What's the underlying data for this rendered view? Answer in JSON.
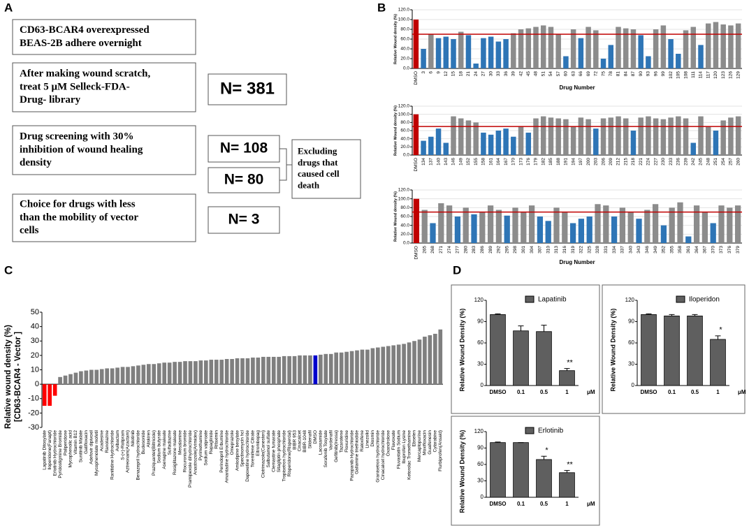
{
  "panel_labels": [
    "A",
    "B",
    "C",
    "D"
  ],
  "flowchart": {
    "steps": [
      {
        "lines": [
          "CD63-BCAR4  overexpressed",
          "BEAS-2B adhere overnight"
        ]
      },
      {
        "lines": [
          "After making wound scratch,",
          "treat  5  μM  Selleck-FDA-",
          "Drug- library"
        ]
      },
      {
        "lines": [
          "Drug screening with  30%",
          "inhibition of wound healing",
          "density"
        ]
      },
      {
        "lines": [
          "Choice for drugs with less",
          "than the mobility of vector",
          "cells"
        ]
      }
    ],
    "counts": [
      {
        "text": "N= 381",
        "color": "#000000"
      },
      {
        "text": "N= 108",
        "color": "#2e75b6"
      },
      {
        "text": "N= 80",
        "color": "#595959"
      },
      {
        "text": "N= 3",
        "color": "#ff0000"
      }
    ],
    "exclusion": {
      "lines": [
        "Excluding",
        "drugs that",
        "caused cell",
        "death"
      ]
    }
  },
  "chart_data": [
    {
      "type": "bar",
      "y_label": "Relative Wound density (%)",
      "x_label": "Drug Number",
      "categories": [
        "DMSO",
        "3",
        "6",
        "9",
        "12",
        "15",
        "18",
        "21",
        "24",
        "27",
        "30",
        "33",
        "36",
        "39",
        "42",
        "45",
        "48",
        "51",
        "54",
        "57",
        "60",
        "63",
        "66",
        "69",
        "72",
        "75",
        "78",
        "81",
        "84",
        "87",
        "90",
        "93",
        "96",
        "99",
        "102",
        "105",
        "108",
        "111",
        "114",
        "117",
        "120",
        "123",
        "126",
        "129"
      ],
      "values": [
        100,
        40,
        70,
        62,
        65,
        60,
        75,
        68,
        10,
        62,
        65,
        55,
        60,
        72,
        80,
        82,
        85,
        88,
        85,
        70,
        25,
        80,
        62,
        85,
        78,
        20,
        48,
        85,
        82,
        80,
        68,
        25,
        80,
        88,
        60,
        30,
        78,
        85,
        48,
        92,
        95,
        90,
        88,
        92
      ],
      "color": "#8c8c8c",
      "highlight_color": "#2e75b6",
      "control_color": "#c00000",
      "threshold": 70,
      "threshold_color": "#c00000",
      "ylim": [
        0,
        120
      ],
      "yticks": [
        {
          "value": 0,
          "label": "0.0"
        },
        {
          "value": 20,
          "label": "20.0"
        },
        {
          "value": 40,
          "label": "40.0"
        },
        {
          "value": 60,
          "label": "60.0"
        },
        {
          "value": 80,
          "label": "80.0"
        },
        {
          "value": 100,
          "label": "100.0"
        },
        {
          "value": 120,
          "label": "120.0"
        }
      ],
      "grid": true
    },
    {
      "type": "bar",
      "y_label": "Relative Wound density (%)",
      "categories": [
        "DMSO",
        "134",
        "137",
        "140",
        "143",
        "146",
        "149",
        "152",
        "155",
        "158",
        "161",
        "164",
        "167",
        "170",
        "173",
        "176",
        "179",
        "182",
        "185",
        "188",
        "191",
        "194",
        "197",
        "200",
        "203",
        "206",
        "209",
        "212",
        "215",
        "218",
        "221",
        "224",
        "227",
        "230",
        "233",
        "236",
        "239",
        "242",
        "245",
        "248",
        "251",
        "254",
        "257",
        "260"
      ],
      "values": [
        100,
        35,
        45,
        65,
        30,
        95,
        90,
        85,
        80,
        55,
        50,
        60,
        65,
        45,
        70,
        55,
        90,
        95,
        92,
        90,
        88,
        70,
        92,
        88,
        65,
        90,
        92,
        95,
        90,
        60,
        92,
        95,
        90,
        88,
        92,
        95,
        90,
        30,
        95,
        70,
        60,
        85,
        92,
        95
      ],
      "color": "#8c8c8c",
      "highlight_color": "#2e75b6",
      "control_color": "#c00000",
      "threshold": 70,
      "threshold_color": "#c00000",
      "ylim": [
        0,
        120
      ],
      "yticks": [
        {
          "value": 0,
          "label": "0.0"
        },
        {
          "value": 20,
          "label": "20.0"
        },
        {
          "value": 40,
          "label": "40.0"
        },
        {
          "value": 60,
          "label": "60.0"
        },
        {
          "value": 80,
          "label": "80.0"
        },
        {
          "value": 100,
          "label": "100.0"
        },
        {
          "value": 120,
          "label": "120.0"
        }
      ],
      "grid": true
    },
    {
      "type": "bar",
      "y_label": "Relative Wound density (%)",
      "x_label": "Drug Number",
      "categories": [
        "DMSO",
        "265",
        "268",
        "271",
        "274",
        "277",
        "280",
        "283",
        "286",
        "289",
        "292",
        "295",
        "298",
        "301",
        "304",
        "307",
        "310",
        "313",
        "316",
        "319",
        "322",
        "325",
        "328",
        "331",
        "334",
        "337",
        "340",
        "343",
        "346",
        "349",
        "352",
        "355",
        "358",
        "361",
        "364",
        "367",
        "370",
        "373",
        "376",
        "379"
      ],
      "values": [
        100,
        75,
        45,
        90,
        85,
        60,
        80,
        65,
        70,
        85,
        75,
        62,
        80,
        70,
        85,
        60,
        50,
        80,
        70,
        45,
        55,
        60,
        88,
        85,
        60,
        80,
        70,
        55,
        75,
        88,
        40,
        80,
        92,
        15,
        85,
        70,
        45,
        85,
        80,
        85
      ],
      "color": "#8c8c8c",
      "highlight_color": "#2e75b6",
      "control_color": "#c00000",
      "threshold": 70,
      "threshold_color": "#c00000",
      "ylim": [
        0,
        120
      ],
      "yticks": [
        {
          "value": 0,
          "label": "0.0"
        },
        {
          "value": 20,
          "label": "20.0"
        },
        {
          "value": 40,
          "label": "40.0"
        },
        {
          "value": 60,
          "label": "60.0"
        },
        {
          "value": 80,
          "label": "80.0"
        },
        {
          "value": 100,
          "label": "100.0"
        },
        {
          "value": 120,
          "label": "120.0"
        }
      ],
      "grid": true
    },
    {
      "type": "bar",
      "y_label": [
        "Relative wound density (%)",
        "[CD63-BCAR4 - Vector ]"
      ],
      "categories": [
        "Lapatinib Ditosylate",
        "Iloperidone(Fanapt)",
        "Erlotinib Hydrochloride",
        "Pyridostigmine Bromide",
        "Paliperidone",
        "Mycophenolic acid",
        "Vitamin B12",
        "Sunitinib Malate",
        "Gatifloxacin",
        "Adefovir dipivoxil",
        "Mycophenolate mofetil",
        "Acadesine",
        "Ranolazine",
        "Ranitidine Hydrochloride",
        "Avibactam",
        "S-(+)-Rolipram",
        "Aztreonam(Azactam)",
        "Nilotinib",
        "Benazepril hydrochloride",
        "Budesonide",
        "Aliskiren",
        "Praziquantel(Biltricide)",
        "Sodium butyrate",
        "Asenapine maleate",
        "Sulfadiazine",
        "Rosiglitazone maleate",
        "Mesalamine",
        "Rocuronium bromide",
        "Pramipexole dihydrochloride",
        "Anastrozole(Arimidex)",
        "Pyrimethamine",
        "Sodium valproate",
        "Repaglinide",
        "Rifaximin",
        "Perindopril Erbumine",
        "Amantadine hydrochloride",
        "Omeprazole",
        "Amlodipine besylate",
        "Spectinomycin hcl",
        "Dapoxetine hydrochloride",
        "Toremifene Citrate",
        "Eltrombopag",
        "Clotrimazole(Canesten)",
        "Salbutamol sulfate",
        "Clemastine fumarate",
        "Sitagliptin phosphate",
        "Tropisetron hydrochloride",
        "Risperidone(Risperdal)",
        "BIBR 953",
        "Cinacalcet",
        "BIBR-1048",
        "Sildenafil",
        "DMSO",
        "Lacosamide",
        "Sorafenib Tosylate",
        "Vardenafil",
        "Gefitinib(Iressa)",
        "Tazarotene",
        "Floxuridine",
        "Pazopanib Hydrochloride",
        "Gallamine triethiodide",
        "Raloxifene",
        "Linezolid",
        "Diosmin",
        "Granisetron hydrochloride",
        "Cinacalcet hydrochloride",
        "Oxandrolone",
        "Flavoxate",
        "Fluvastatin Sodium",
        "Ibuprofen Lysine",
        "Ketorolac Tromethamine",
        "Ebselen",
        "Mercaptopurine",
        "Moxifloxacin",
        "Guaifenesin",
        "Cytarabine",
        "Flurbiprofen(Ansaid)"
      ],
      "values": [
        -15,
        -15,
        -8,
        5,
        6,
        7,
        8,
        9,
        9.5,
        10,
        10,
        10.5,
        11,
        11,
        11.5,
        12,
        12,
        12.5,
        13,
        13.5,
        14,
        14,
        14.5,
        15,
        15,
        15.5,
        15.5,
        16,
        16,
        16,
        16.5,
        16.5,
        17,
        17,
        17,
        17.5,
        17.5,
        18,
        18,
        18,
        18.5,
        18.5,
        19,
        19,
        19,
        19,
        19.5,
        19.5,
        19.5,
        20,
        20,
        20,
        20,
        20.5,
        21,
        21,
        22,
        22,
        22.5,
        23,
        23.5,
        24,
        24,
        25,
        25.5,
        26,
        26.5,
        27,
        27.5,
        28,
        29,
        30,
        31,
        33,
        34,
        35,
        38
      ],
      "colors": [
        "#ff0000",
        "#ff0000",
        "#ff0000",
        "#7f7f7f",
        "#7f7f7f",
        "#7f7f7f",
        "#7f7f7f",
        "#7f7f7f",
        "#7f7f7f",
        "#7f7f7f",
        "#7f7f7f",
        "#7f7f7f",
        "#7f7f7f",
        "#7f7f7f",
        "#7f7f7f",
        "#7f7f7f",
        "#7f7f7f",
        "#7f7f7f",
        "#7f7f7f",
        "#7f7f7f",
        "#7f7f7f",
        "#7f7f7f",
        "#7f7f7f",
        "#7f7f7f",
        "#7f7f7f",
        "#7f7f7f",
        "#7f7f7f",
        "#7f7f7f",
        "#7f7f7f",
        "#7f7f7f",
        "#7f7f7f",
        "#7f7f7f",
        "#7f7f7f",
        "#7f7f7f",
        "#7f7f7f",
        "#7f7f7f",
        "#7f7f7f",
        "#7f7f7f",
        "#7f7f7f",
        "#7f7f7f",
        "#7f7f7f",
        "#7f7f7f",
        "#7f7f7f",
        "#7f7f7f",
        "#7f7f7f",
        "#7f7f7f",
        "#7f7f7f",
        "#7f7f7f",
        "#7f7f7f",
        "#7f7f7f",
        "#7f7f7f",
        "#7f7f7f",
        "#0000cc",
        "#7f7f7f",
        "#7f7f7f",
        "#7f7f7f",
        "#7f7f7f",
        "#7f7f7f",
        "#7f7f7f",
        "#7f7f7f",
        "#7f7f7f",
        "#7f7f7f",
        "#7f7f7f",
        "#7f7f7f",
        "#7f7f7f",
        "#7f7f7f",
        "#7f7f7f",
        "#7f7f7f",
        "#7f7f7f",
        "#7f7f7f",
        "#7f7f7f",
        "#7f7f7f",
        "#7f7f7f",
        "#7f7f7f",
        "#7f7f7f",
        "#7f7f7f",
        "#7f7f7f"
      ],
      "ylim": [
        -30,
        50
      ],
      "yticks": [
        -30,
        -20,
        -10,
        0,
        10,
        20,
        30,
        40,
        50
      ],
      "grid": false
    },
    {
      "type": "bar",
      "y_label": "Relative Wound Density (%)",
      "x_label": "μM",
      "categories": [
        "DMSO",
        "0.1",
        "0.5",
        "1"
      ],
      "series": [
        {
          "name": "Lapatinib",
          "color": "#5f5f5f",
          "values": [
            100,
            77,
            76,
            21
          ],
          "errors": [
            1,
            7,
            9,
            3
          ],
          "annotations": [
            null,
            null,
            null,
            "**"
          ]
        }
      ],
      "ylim": [
        0,
        120
      ],
      "yticks": [
        0,
        30,
        60,
        90,
        120
      ]
    },
    {
      "type": "bar",
      "y_label": "Relative Wound Density (%)",
      "x_label": "μM",
      "categories": [
        "DMSO",
        "0.1",
        "0.5",
        "1"
      ],
      "series": [
        {
          "name": "Iloperidon",
          "color": "#5f5f5f",
          "values": [
            100,
            98,
            98,
            65
          ],
          "errors": [
            1,
            2,
            2,
            5
          ],
          "annotations": [
            null,
            null,
            null,
            "*"
          ]
        }
      ],
      "ylim": [
        0,
        120
      ],
      "yticks": [
        0,
        30,
        60,
        90,
        120
      ]
    },
    {
      "type": "bar",
      "y_label": "Relative Wound Density (%)",
      "x_label": "μM",
      "categories": [
        "DMSO",
        "0.1",
        "0.5",
        "1"
      ],
      "series": [
        {
          "name": "Erlotinib",
          "color": "#5f5f5f",
          "values": [
            100,
            100,
            69,
            45
          ],
          "errors": [
            1,
            0,
            6,
            4
          ],
          "annotations": [
            null,
            null,
            "*",
            "**"
          ]
        }
      ],
      "ylim": [
        0,
        120
      ],
      "yticks": [
        0,
        30,
        60,
        90,
        120
      ]
    }
  ]
}
